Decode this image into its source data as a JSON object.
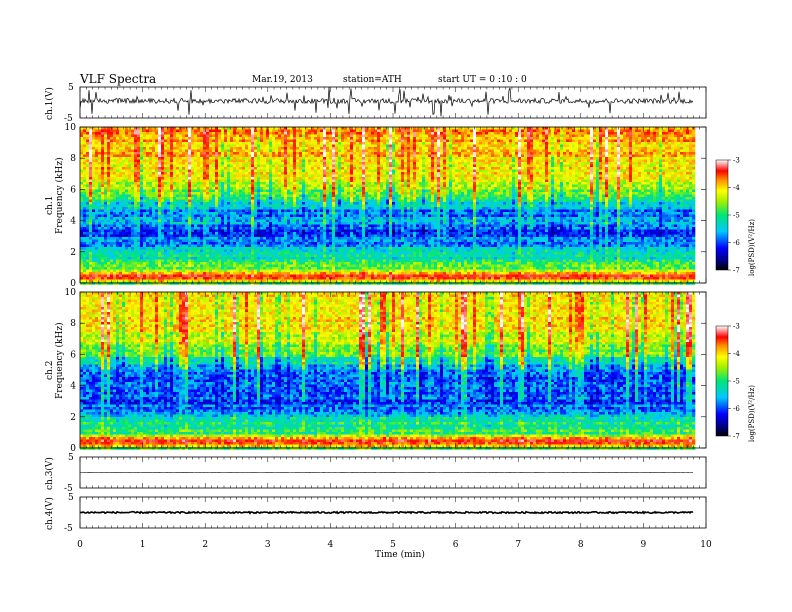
{
  "header": {
    "title": "VLF  Spectra",
    "date": "Mar.19, 2013",
    "station": "station=ATH",
    "start": "start  UT  =   0  :10 : 0"
  },
  "axes": {
    "xlabel": "Time  (min)",
    "freq_label": "Frequency  (kHz)",
    "ch1_wave_label": "ch.1(V)",
    "ch1_spec_label": "ch.1",
    "ch2_spec_label": "ch.2",
    "ch3_wave_label": "ch.3(V)",
    "ch4_wave_label": "ch.4(V)",
    "cbar_label": "log(PSD)(V²/Hz)"
  },
  "chart_data": [
    {
      "type": "line",
      "panel": "ch.1 waveform",
      "ylabel": "ch.1(V)",
      "ylim": [
        -5,
        5
      ],
      "yticks": [
        "5",
        "-5"
      ],
      "xlim": [
        0,
        10
      ],
      "data_end_min": 9.8,
      "baseline_v": 0.5
    },
    {
      "type": "heatmap",
      "panel": "ch.1 spectrogram",
      "ylabel": "Frequency  (kHz)",
      "channel": "ch.1",
      "ylim": [
        0,
        10
      ],
      "yticks": [
        "0",
        "2",
        "4",
        "6",
        "8",
        "10"
      ],
      "xlim": [
        0,
        10
      ],
      "data_end_min": 9.8,
      "colorbar": {
        "label": "log(PSD)(V²/Hz)",
        "range": [
          -7,
          -3
        ],
        "ticks": [
          "-3",
          "-4",
          "-5",
          "-6",
          "-7"
        ]
      },
      "profile_khz": [
        0,
        0.5,
        1,
        1.5,
        2,
        2.5,
        3,
        3.5,
        4,
        4.5,
        5,
        5.5,
        6,
        6.5,
        7,
        7.5,
        8,
        8.5,
        9,
        9.5,
        10
      ],
      "profile_log_psd": [
        -5.5,
        -3.4,
        -5.0,
        -5.4,
        -5.6,
        -5.9,
        -6.1,
        -6.2,
        -5.9,
        -6.0,
        -5.7,
        -5.3,
        -5.0,
        -4.8,
        -4.6,
        -4.5,
        -4.4,
        -4.3,
        -4.3,
        -4.2,
        -4.2
      ]
    },
    {
      "type": "heatmap",
      "panel": "ch.2 spectrogram",
      "ylabel": "Frequency  (kHz)",
      "channel": "ch.2",
      "ylim": [
        0,
        10
      ],
      "yticks": [
        "0",
        "2",
        "4",
        "6",
        "8",
        "10"
      ],
      "xlim": [
        0,
        10
      ],
      "data_end_min": 9.8,
      "colorbar": {
        "label": "log(PSD)(V²/Hz)",
        "range": [
          -7,
          -3
        ],
        "ticks": [
          "-3",
          "-4",
          "-5",
          "-6",
          "-7"
        ]
      },
      "profile_khz": [
        0,
        0.5,
        1,
        1.5,
        2,
        2.5,
        3,
        3.5,
        4,
        4.5,
        5,
        5.5,
        6,
        6.5,
        7,
        7.5,
        8,
        8.5,
        9,
        9.5,
        10
      ],
      "profile_log_psd": [
        -5.5,
        -3.4,
        -5.1,
        -5.4,
        -5.6,
        -5.9,
        -6.1,
        -6.2,
        -6.1,
        -6.2,
        -6.0,
        -5.5,
        -5.2,
        -4.9,
        -4.7,
        -4.6,
        -4.5,
        -4.4,
        -4.4,
        -4.4,
        -4.3
      ]
    },
    {
      "type": "line",
      "panel": "ch.3 waveform",
      "ylabel": "ch.3(V)",
      "ylim": [
        -5,
        5
      ],
      "yticks": [
        "5",
        "-5"
      ],
      "xlim": [
        0,
        10
      ],
      "data_end_min": 9.8,
      "baseline_v": 0
    },
    {
      "type": "line",
      "panel": "ch.4 waveform",
      "ylabel": "ch.4(V)",
      "ylim": [
        -5,
        5
      ],
      "yticks": [
        "5",
        "-5"
      ],
      "xlim": [
        0,
        10
      ],
      "data_end_min": 9.8,
      "baseline_v": 0
    }
  ],
  "xticks": [
    "0",
    "1",
    "2",
    "3",
    "4",
    "5",
    "6",
    "7",
    "8",
    "9",
    "10"
  ]
}
